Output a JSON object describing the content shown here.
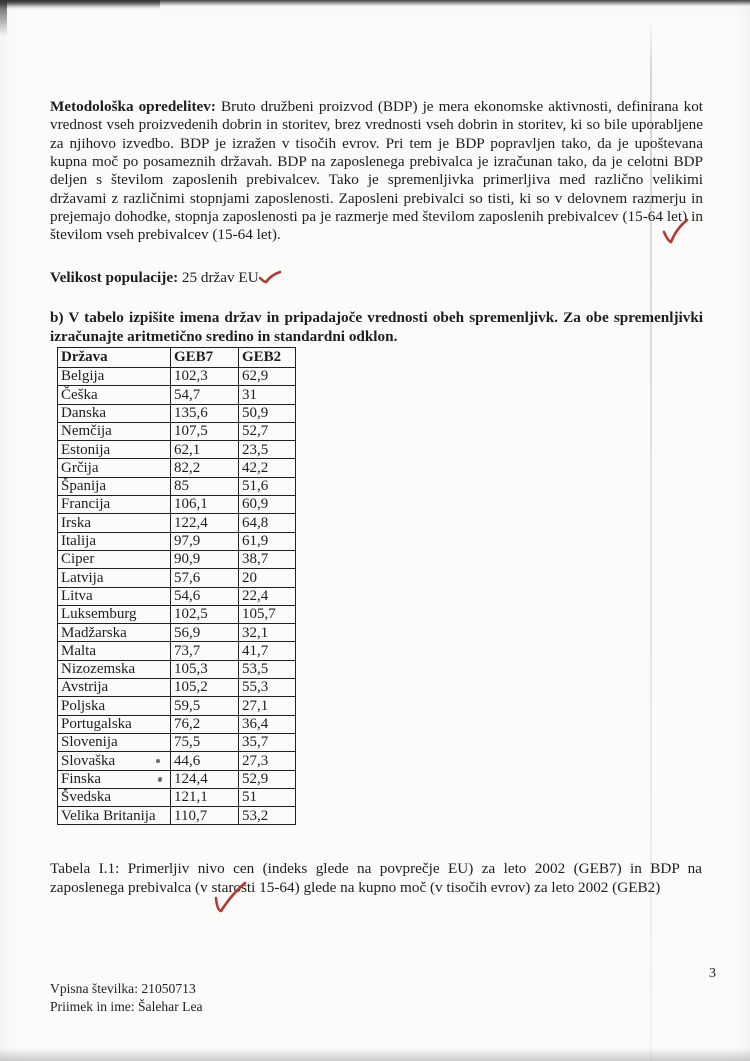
{
  "intro": {
    "label": "Metodološka opredelitev:",
    "text": " Bruto družbeni proizvod (BDP) je mera ekonomske aktivnosti, definirana kot vrednost vseh proizvedenih dobrin in storitev, brez vrednosti vseh dobrin in storitev, ki so bile uporabljene za njihovo izvedbo. BDP je izražen v tisočih evrov. Pri tem je BDP popravljen tako, da je upoštevana kupna moč po posameznih državah. BDP na zaposlenega prebivalca je izračunan tako, da je celotni BDP deljen s številom zaposlenih prebivalcev. Tako je spremenljivka primerljiva med različno velikimi državami z različnimi stopnjami zaposlenosti. Zaposleni prebivalci so tisti, ki so v delovnem razmerju in prejemajo dohodke, stopnja zaposlenosti pa je razmerje med številom zaposlenih prebivalcev (15-64 let) in številom vseh prebivalcev (15-64 let)."
  },
  "population": {
    "label": "Velikost populacije:",
    "value": " 25 držav EU"
  },
  "task": {
    "text": "b) V tabelo izpišite imena držav in pripadajoče vrednosti obeh spremenljivk. Za obe spremenljivki izračunajte aritmetično sredino in standardni odklon."
  },
  "table": {
    "headers": [
      "Država",
      "GEB7",
      "GEB2"
    ],
    "rows": [
      [
        "Belgija",
        "102,3",
        "62,9"
      ],
      [
        "Češka",
        "54,7",
        "31"
      ],
      [
        "Danska",
        "135,6",
        "50,9"
      ],
      [
        "Nemčija",
        "107,5",
        "52,7"
      ],
      [
        "Estonija",
        "62,1",
        "23,5"
      ],
      [
        "Grčija",
        "82,2",
        "42,2"
      ],
      [
        "Španija",
        "85",
        "51,6"
      ],
      [
        "Francija",
        "106,1",
        "60,9"
      ],
      [
        "Irska",
        "122,4",
        "64,8"
      ],
      [
        "Italija",
        "97,9",
        "61,9"
      ],
      [
        "Ciper",
        "90,9",
        "38,7"
      ],
      [
        "Latvija",
        "57,6",
        "20"
      ],
      [
        "Litva",
        "54,6",
        "22,4"
      ],
      [
        "Luksemburg",
        "102,5",
        "105,7"
      ],
      [
        "Madžarska",
        "56,9",
        "32,1"
      ],
      [
        "Malta",
        "73,7",
        "41,7"
      ],
      [
        "Nizozemska",
        "105,3",
        "53,5"
      ],
      [
        "Avstrija",
        "105,2",
        "55,3"
      ],
      [
        "Poljska",
        "59,5",
        "27,1"
      ],
      [
        "Portugalska",
        "76,2",
        "36,4"
      ],
      [
        "Slovenija",
        "75,5",
        "35,7"
      ],
      [
        "Slovaška",
        "44,6",
        "27,3"
      ],
      [
        "Finska",
        "124,4",
        "52,9"
      ],
      [
        "Švedska",
        "121,1",
        "51"
      ],
      [
        "Velika Britanija",
        "110,7",
        "53,2"
      ]
    ]
  },
  "caption": {
    "text": "Tabela I.1: Primerljiv nivo cen (indeks glede na povprečje EU) za leto 2002 (GEB7) in BDP na zaposlenega prebivalca (v starosti 15-64) glede na kupno moč (v tisočih evrov) za leto 2002 (GEB2)"
  },
  "footer": {
    "line1": "Vpisna številka: 21050713",
    "line2": "Priimek in ime: Šalehar Lea"
  },
  "page_number": "3",
  "annotations": {
    "checkmark_color": "#b5372f"
  }
}
